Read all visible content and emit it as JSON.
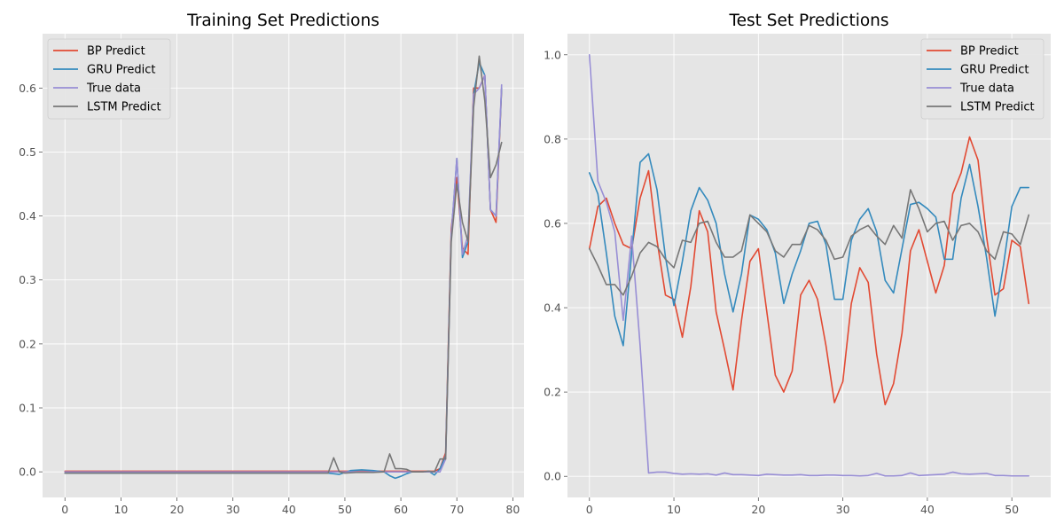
{
  "chart_data": [
    {
      "type": "line",
      "title": "Training Set Predictions",
      "xlabel": "",
      "ylabel": "",
      "xlim": [
        -4,
        82
      ],
      "ylim": [
        -0.04,
        0.685
      ],
      "xticks": [
        0,
        10,
        20,
        30,
        40,
        50,
        60,
        70,
        80
      ],
      "yticks": [
        0.0,
        0.1,
        0.2,
        0.3,
        0.4,
        0.5,
        0.6
      ],
      "ytick_decimals": 1,
      "grid": true,
      "legend": "top-left",
      "series": [
        {
          "name": "BP Predict",
          "color": "#E24A33",
          "points": [
            [
              0,
              0.001
            ],
            [
              10,
              0.001
            ],
            [
              20,
              0.001
            ],
            [
              30,
              0.001
            ],
            [
              40,
              0.001
            ],
            [
              47,
              0.001
            ],
            [
              50,
              0.001
            ],
            [
              55,
              0.001
            ],
            [
              60,
              0.001
            ],
            [
              64,
              0.001
            ],
            [
              66,
              0.001
            ],
            [
              67,
              0.005
            ],
            [
              68,
              0.03
            ],
            [
              69,
              0.38
            ],
            [
              70,
              0.46
            ],
            [
              71,
              0.35
            ],
            [
              72,
              0.34
            ],
            [
              73,
              0.6
            ],
            [
              74,
              0.6
            ],
            [
              75,
              0.62
            ],
            [
              76,
              0.41
            ],
            [
              77,
              0.39
            ],
            [
              78,
              0.6
            ]
          ]
        },
        {
          "name": "GRU Predict",
          "color": "#348ABD",
          "points": [
            [
              0,
              -0.002
            ],
            [
              10,
              -0.002
            ],
            [
              20,
              -0.002
            ],
            [
              30,
              -0.002
            ],
            [
              40,
              -0.002
            ],
            [
              47,
              -0.002
            ],
            [
              49,
              -0.004
            ],
            [
              51,
              0.002
            ],
            [
              53,
              0.003
            ],
            [
              55,
              0.002
            ],
            [
              57,
              0.0
            ],
            [
              58,
              -0.006
            ],
            [
              59,
              -0.01
            ],
            [
              60,
              -0.007
            ],
            [
              61,
              -0.003
            ],
            [
              62,
              0.0
            ],
            [
              64,
              0.0
            ],
            [
              65,
              0.001
            ],
            [
              66,
              -0.005
            ],
            [
              67,
              0.005
            ],
            [
              68,
              0.025
            ],
            [
              69,
              0.37
            ],
            [
              70,
              0.49
            ],
            [
              71,
              0.335
            ],
            [
              72,
              0.36
            ],
            [
              73,
              0.59
            ],
            [
              74,
              0.64
            ],
            [
              75,
              0.62
            ],
            [
              76,
              0.41
            ],
            [
              77,
              0.4
            ],
            [
              78,
              0.6
            ]
          ]
        },
        {
          "name": "True data",
          "color": "#988ED5",
          "points": [
            [
              0,
              0.0
            ],
            [
              10,
              0.0
            ],
            [
              20,
              0.0
            ],
            [
              30,
              0.0
            ],
            [
              40,
              0.0
            ],
            [
              47,
              0.0
            ],
            [
              50,
              0.0
            ],
            [
              55,
              0.0
            ],
            [
              60,
              0.0
            ],
            [
              64,
              0.0
            ],
            [
              66,
              0.0
            ],
            [
              67,
              0.0
            ],
            [
              68,
              0.02
            ],
            [
              69,
              0.37
            ],
            [
              70,
              0.49
            ],
            [
              71,
              0.34
            ],
            [
              72,
              0.37
            ],
            [
              73,
              0.59
            ],
            [
              74,
              0.6
            ],
            [
              75,
              0.62
            ],
            [
              76,
              0.41
            ],
            [
              77,
              0.4
            ],
            [
              78,
              0.605
            ]
          ]
        },
        {
          "name": "LSTM Predict",
          "color": "#777777",
          "points": [
            [
              0,
              -0.002
            ],
            [
              10,
              -0.002
            ],
            [
              20,
              -0.002
            ],
            [
              30,
              -0.002
            ],
            [
              40,
              -0.002
            ],
            [
              46,
              -0.002
            ],
            [
              47,
              -0.002
            ],
            [
              48,
              0.022
            ],
            [
              49,
              0.0
            ],
            [
              50,
              -0.002
            ],
            [
              52,
              -0.001
            ],
            [
              55,
              -0.001
            ],
            [
              57,
              0.0
            ],
            [
              58,
              0.028
            ],
            [
              59,
              0.005
            ],
            [
              60,
              0.005
            ],
            [
              61,
              0.004
            ],
            [
              62,
              0.0
            ],
            [
              64,
              0.0
            ],
            [
              65,
              0.001
            ],
            [
              66,
              0.0
            ],
            [
              67,
              0.02
            ],
            [
              68,
              0.02
            ],
            [
              69,
              0.36
            ],
            [
              70,
              0.45
            ],
            [
              71,
              0.39
            ],
            [
              72,
              0.36
            ],
            [
              73,
              0.57
            ],
            [
              74,
              0.65
            ],
            [
              75,
              0.58
            ],
            [
              76,
              0.46
            ],
            [
              77,
              0.48
            ],
            [
              78,
              0.515
            ]
          ]
        }
      ]
    },
    {
      "type": "line",
      "title": "Test Set Predictions",
      "xlabel": "",
      "ylabel": "",
      "xlim": [
        -2.6,
        54.6
      ],
      "ylim": [
        -0.05,
        1.05
      ],
      "xticks": [
        0,
        10,
        20,
        30,
        40,
        50
      ],
      "yticks": [
        0.0,
        0.2,
        0.4,
        0.6,
        0.8,
        1.0
      ],
      "ytick_decimals": 1,
      "grid": true,
      "legend": "top-right",
      "series": [
        {
          "name": "BP Predict",
          "color": "#E24A33",
          "values": [
            0.54,
            0.64,
            0.66,
            0.6,
            0.55,
            0.54,
            0.66,
            0.725,
            0.56,
            0.43,
            0.42,
            0.33,
            0.45,
            0.63,
            0.58,
            0.39,
            0.3,
            0.205,
            0.37,
            0.51,
            0.54,
            0.39,
            0.24,
            0.2,
            0.25,
            0.43,
            0.465,
            0.42,
            0.31,
            0.175,
            0.225,
            0.41,
            0.495,
            0.46,
            0.29,
            0.17,
            0.22,
            0.34,
            0.535,
            0.585,
            0.51,
            0.435,
            0.5,
            0.67,
            0.72,
            0.805,
            0.75,
            0.57,
            0.43,
            0.445,
            0.56,
            0.545,
            0.41
          ]
        },
        {
          "name": "GRU Predict",
          "color": "#348ABD",
          "values": [
            0.72,
            0.67,
            0.53,
            0.38,
            0.31,
            0.53,
            0.745,
            0.765,
            0.68,
            0.52,
            0.405,
            0.51,
            0.63,
            0.685,
            0.655,
            0.6,
            0.48,
            0.39,
            0.48,
            0.62,
            0.61,
            0.585,
            0.53,
            0.41,
            0.48,
            0.535,
            0.6,
            0.605,
            0.55,
            0.42,
            0.42,
            0.56,
            0.61,
            0.635,
            0.58,
            0.465,
            0.435,
            0.54,
            0.645,
            0.65,
            0.635,
            0.615,
            0.515,
            0.515,
            0.66,
            0.74,
            0.64,
            0.52,
            0.38,
            0.5,
            0.64,
            0.685,
            0.685
          ]
        },
        {
          "name": "True data",
          "color": "#988ED5",
          "values": [
            1.0,
            0.7,
            0.65,
            0.58,
            0.37,
            0.57,
            0.31,
            0.008,
            0.01,
            0.01,
            0.007,
            0.005,
            0.006,
            0.005,
            0.006,
            0.003,
            0.008,
            0.004,
            0.004,
            0.003,
            0.002,
            0.005,
            0.004,
            0.003,
            0.003,
            0.004,
            0.002,
            0.002,
            0.003,
            0.003,
            0.002,
            0.002,
            0.001,
            0.002,
            0.007,
            0.001,
            0.001,
            0.002,
            0.008,
            0.002,
            0.003,
            0.004,
            0.005,
            0.01,
            0.006,
            0.005,
            0.006,
            0.007,
            0.002,
            0.002,
            0.001,
            0.001,
            0.001
          ]
        },
        {
          "name": "LSTM Predict",
          "color": "#777777",
          "values": [
            0.54,
            0.5,
            0.455,
            0.455,
            0.43,
            0.475,
            0.53,
            0.555,
            0.545,
            0.515,
            0.495,
            0.56,
            0.555,
            0.6,
            0.605,
            0.555,
            0.52,
            0.52,
            0.535,
            0.62,
            0.6,
            0.58,
            0.535,
            0.52,
            0.55,
            0.55,
            0.595,
            0.585,
            0.56,
            0.515,
            0.52,
            0.57,
            0.585,
            0.595,
            0.57,
            0.55,
            0.595,
            0.565,
            0.68,
            0.635,
            0.58,
            0.6,
            0.605,
            0.56,
            0.595,
            0.6,
            0.58,
            0.535,
            0.515,
            0.58,
            0.575,
            0.55,
            0.62
          ]
        }
      ]
    }
  ]
}
